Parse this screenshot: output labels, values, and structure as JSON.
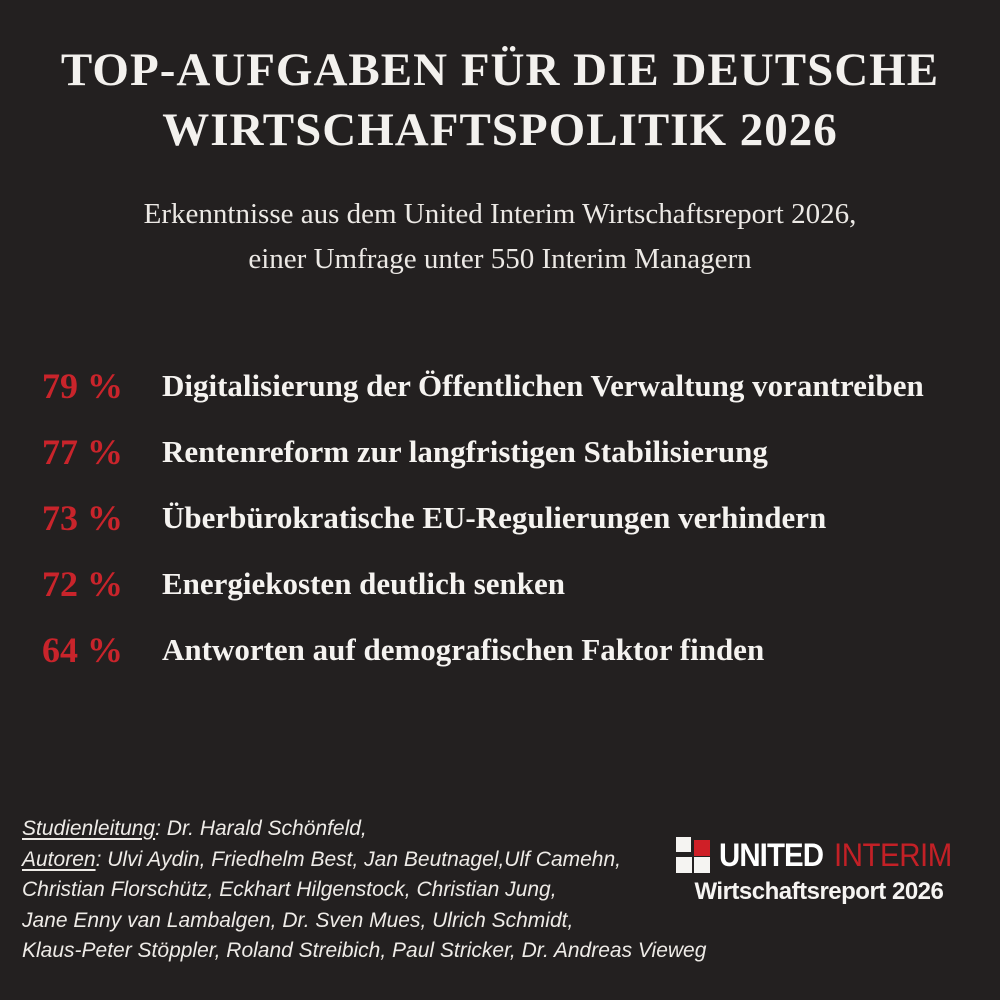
{
  "page": {
    "background_color": "#232020",
    "accent_red": "#c9242b",
    "text_white": "#f3f1ee"
  },
  "header": {
    "title_line1": "TOP-AUFGABEN FÜR DIE DEUTSCHE",
    "title_line2": "WIRTSCHAFTSPOLITIK 2026",
    "subtitle_line1": "Erkenntnisse aus dem United Interim Wirtschaftsreport 2026,",
    "subtitle_line2": "einer Umfrage unter 550 Interim Managern"
  },
  "items": [
    {
      "percent": "79 %",
      "task": "Digitalisierung der Öffentlichen Verwaltung vorantreiben"
    },
    {
      "percent": "77 %",
      "task": "Rentenreform zur langfristigen Stabilisierung"
    },
    {
      "percent": "73 %",
      "task": "Überbürokratische EU-Regulierungen verhindern"
    },
    {
      "percent": "72 %",
      "task": "Energiekosten deutlich senken"
    },
    {
      "percent": "64 %",
      "task": "Antworten auf demografischen Faktor finden"
    }
  ],
  "chart_data": {
    "type": "table",
    "title": "TOP-AUFGABEN FÜR DIE DEUTSCHE WIRTSCHAFTSPOLITIK 2026",
    "subtitle": "Erkenntnisse aus dem United Interim Wirtschaftsreport 2026, einer Umfrage unter 550 Interim Managern",
    "categories": [
      "Digitalisierung der Öffentlichen Verwaltung vorantreiben",
      "Rentenreform zur langfristigen Stabilisierung",
      "Überbürokratische EU-Regulierungen verhindern",
      "Energiekosten deutlich senken",
      "Antworten auf demografischen Faktor finden"
    ],
    "values": [
      79,
      77,
      73,
      72,
      64
    ],
    "unit": "%",
    "sample_size": "550 Interim Manager"
  },
  "credits": {
    "leader_label": "Studienleitung",
    "leader_rest": ": Dr. Harald Schönfeld,",
    "authors_label": "Autoren",
    "authors_rest": ": Ulvi Aydin, Friedhelm Best, Jan Beutnagel,Ulf Camehn,",
    "line3": "Christian Florschütz, Eckhart Hilgenstock, Christian Jung,",
    "line4": "Jane Enny van Lambalgen,  Dr. Sven Mues, Ulrich Schmidt,",
    "line5": "Klaus-Peter Stöppler, Roland Streibich, Paul Stricker, Dr. Andreas Vieweg"
  },
  "logo": {
    "brand_united": "UNITED",
    "brand_interim": "INTERIM",
    "tagline": "Wirtschaftsreport 2026"
  }
}
